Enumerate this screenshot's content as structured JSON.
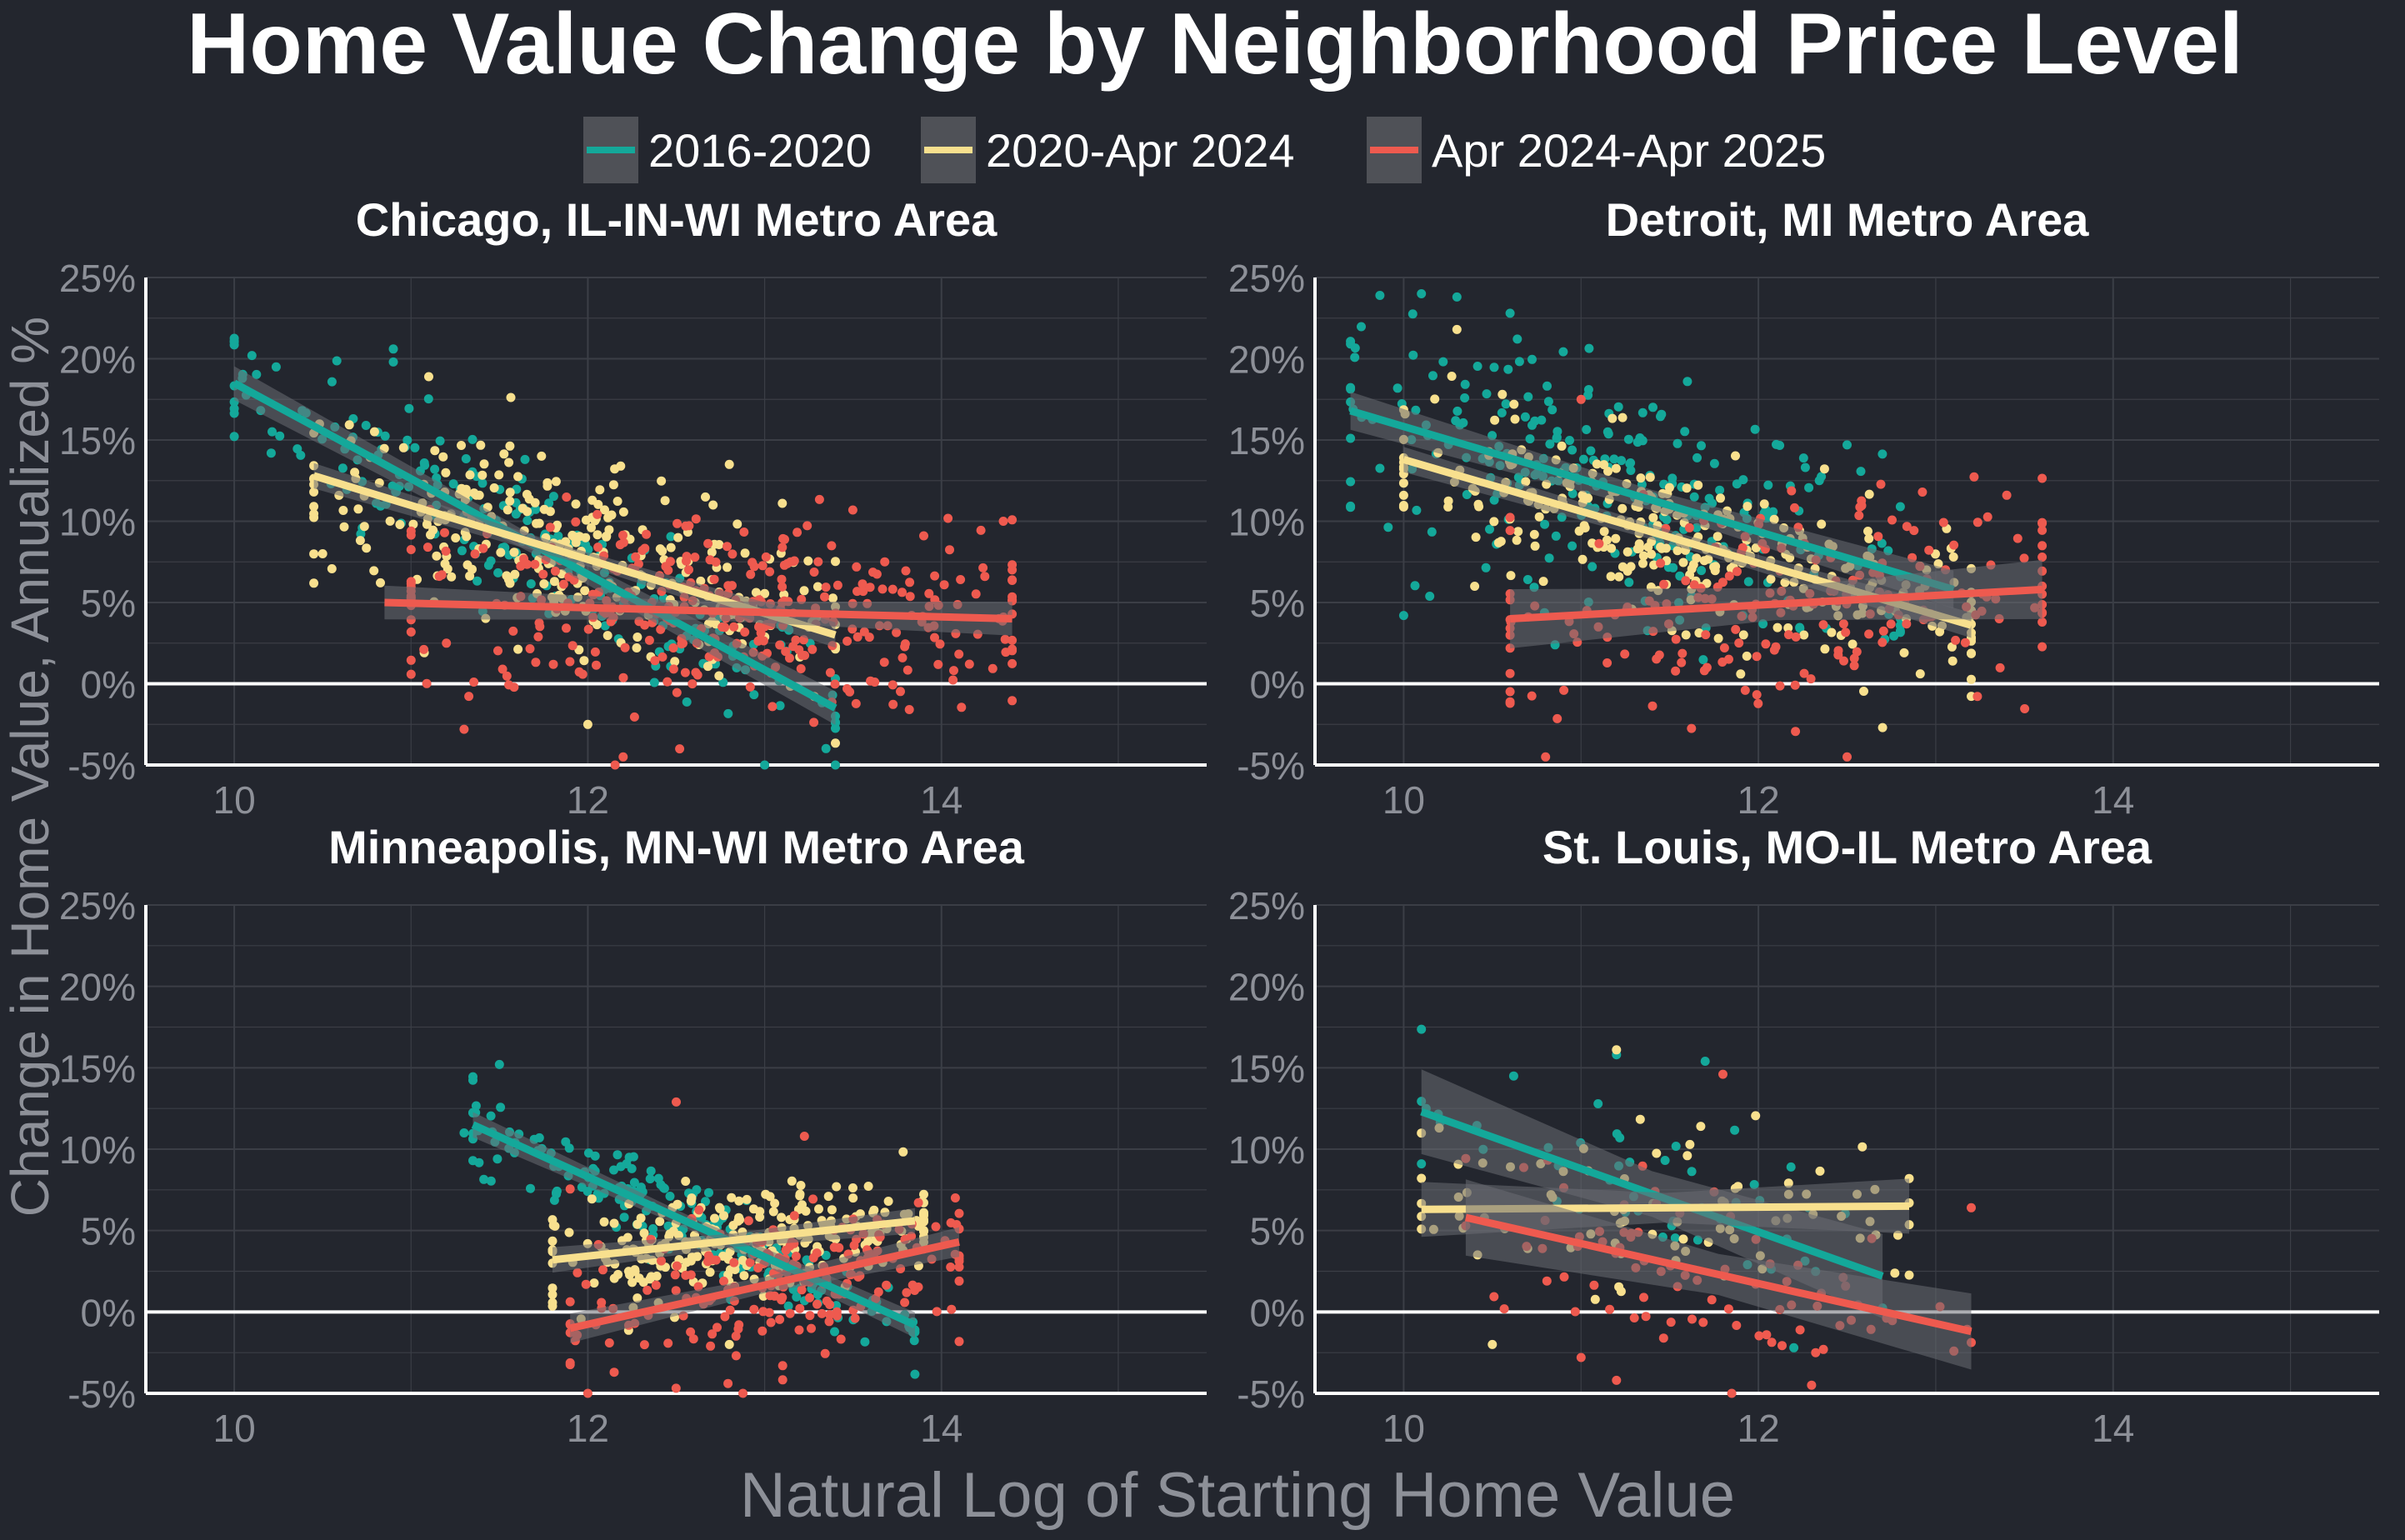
{
  "chart_data": {
    "type": "scatter",
    "title": "Home Value Change by Neighborhood Price Level",
    "xlabel": "Natural Log of Starting Home Value",
    "ylabel": "Change in Home Value, Annualized %",
    "xlim": [
      9.5,
      15.5
    ],
    "ylim": [
      -5,
      25
    ],
    "x_ticks": [
      10,
      12,
      14
    ],
    "y_ticks": [
      -5,
      0,
      5,
      10,
      15,
      20,
      25
    ],
    "y_tick_labels": [
      "-5%",
      "0%",
      "5%",
      "10%",
      "15%",
      "20%",
      "25%"
    ],
    "grid": true,
    "legend_position": "top",
    "series": [
      {
        "name": "2016-2020",
        "color": "#14a89a"
      },
      {
        "name": "2020-Apr 2024",
        "color": "#f8e08e"
      },
      {
        "name": "Apr 2024-Apr 2025",
        "color": "#ee5a4f"
      }
    ],
    "panels": [
      {
        "title": "Chicago, IL-IN-WI Metro Area",
        "fits": [
          {
            "x": [
              10.0,
              13.4
            ],
            "y": [
              18.5,
              -1.5
            ],
            "band": 0.8
          },
          {
            "x": [
              10.45,
              13.4
            ],
            "y": [
              12.8,
              3.0
            ],
            "band": 0.6
          },
          {
            "x": [
              10.85,
              14.4
            ],
            "y": [
              5.0,
              4.0
            ],
            "band": 0.8
          }
        ],
        "clouds": [
          {
            "x": [
              10.0,
              13.4
            ],
            "fit": [
              18.5,
              -1.5
            ],
            "sd": 2.2,
            "n": 220,
            "anchors": [
              [
                10.1,
                20.2
              ],
              [
                10.9,
                20.6
              ],
              [
                10.9,
                19.8
              ],
              [
                11.3,
                10.3
              ],
              [
                13.0,
                -5.0
              ]
            ]
          },
          {
            "x": [
              10.45,
              13.4
            ],
            "fit": [
              12.8,
              3.0
            ],
            "sd": 2.6,
            "n": 300,
            "anchors": [
              [
                10.5,
                8.0
              ],
              [
                11.1,
                18.9
              ],
              [
                12.8,
                13.5
              ],
              [
                13.1,
                11.1
              ],
              [
                12.0,
                -2.5
              ]
            ]
          },
          {
            "x": [
              11.0,
              14.4
            ],
            "fit": [
              5.0,
              4.0
            ],
            "sd": 3.0,
            "n": 360,
            "anchors": [
              [
                11.2,
                2.5
              ],
              [
                11.3,
                -2.8
              ],
              [
                14.35,
                10.0
              ],
              [
                12.2,
                -4.5
              ],
              [
                13.9,
                9.1
              ]
            ]
          }
        ]
      },
      {
        "title": "Detroit, MI Metro Area",
        "fits": [
          {
            "x": [
              9.7,
              13.1
            ],
            "y": [
              16.8,
              5.8
            ],
            "band": 0.9
          },
          {
            "x": [
              10.0,
              13.2
            ],
            "y": [
              13.8,
              3.6
            ],
            "band": 0.6
          },
          {
            "x": [
              10.6,
              13.6
            ],
            "y": [
              4.0,
              5.8
            ],
            "band": 1.4
          }
        ],
        "clouds": [
          {
            "x": [
              9.7,
              12.8
            ],
            "fit": [
              16.8,
              6.8
            ],
            "sd": 3.4,
            "n": 260,
            "anchors": [
              [
                10.1,
                24.0
              ],
              [
                10.3,
                23.8
              ],
              [
                10.6,
                22.8
              ],
              [
                10.0,
                4.2
              ],
              [
                12.5,
                14.7
              ],
              [
                11.6,
                18.6
              ]
            ]
          },
          {
            "x": [
              10.0,
              13.2
            ],
            "fit": [
              13.8,
              3.6
            ],
            "sd": 2.4,
            "n": 300,
            "anchors": [
              [
                10.3,
                21.8
              ],
              [
                10.4,
                6.0
              ],
              [
                11.9,
                0.6
              ],
              [
                13.1,
                7.8
              ],
              [
                12.7,
                -2.7
              ]
            ]
          },
          {
            "x": [
              10.6,
              13.6
            ],
            "fit": [
              4.0,
              5.8
            ],
            "sd": 3.4,
            "n": 200,
            "anchors": [
              [
                10.8,
                -4.5
              ],
              [
                12.5,
                -4.5
              ],
              [
                13.4,
                11.6
              ],
              [
                13.6,
                8.5
              ],
              [
                11.0,
                17.5
              ]
            ]
          }
        ]
      },
      {
        "title": "Minneapolis, MN-WI Metro Area",
        "fits": [
          {
            "x": [
              11.35,
              13.85
            ],
            "y": [
              11.5,
              -0.8
            ],
            "band": 0.6
          },
          {
            "x": [
              11.8,
              13.85
            ],
            "y": [
              3.2,
              5.6
            ],
            "band": 0.6
          },
          {
            "x": [
              11.9,
              14.1
            ],
            "y": [
              -1.0,
              4.3
            ],
            "band": 0.7
          }
        ],
        "clouds": [
          {
            "x": [
              11.35,
              13.85
            ],
            "fit": [
              11.5,
              -0.8
            ],
            "sd": 1.4,
            "n": 200,
            "anchors": [
              [
                11.5,
                15.2
              ],
              [
                11.3,
                11.0
              ],
              [
                13.7,
                1.5
              ]
            ]
          },
          {
            "x": [
              11.8,
              13.9
            ],
            "fit": [
              3.2,
              5.6
            ],
            "sd": 1.6,
            "n": 260,
            "anchors": [
              [
                13.5,
                7.0
              ],
              [
                13.7,
                6.8
              ],
              [
                12.8,
                -2.0
              ]
            ]
          },
          {
            "x": [
              11.9,
              14.1
            ],
            "fit": [
              -1.0,
              4.3
            ],
            "sd": 2.4,
            "n": 200,
            "anchors": [
              [
                12.5,
                12.9
              ],
              [
                14.1,
                5.1
              ],
              [
                12.0,
                -5.0
              ]
            ]
          }
        ]
      },
      {
        "title": "St. Louis, MO-IL Metro Area",
        "fits": [
          {
            "x": [
              10.1,
              12.7
            ],
            "y": [
              12.3,
              2.2
            ],
            "band": 2.0
          },
          {
            "x": [
              10.1,
              12.85
            ],
            "y": [
              6.3,
              6.5
            ],
            "band": 1.3
          },
          {
            "x": [
              10.35,
              13.2
            ],
            "y": [
              5.8,
              -1.2
            ],
            "band": 1.8
          }
        ],
        "clouds": [
          {
            "x": [
              10.1,
              12.7
            ],
            "fit": [
              12.3,
              2.2
            ],
            "sd": 2.4,
            "n": 45,
            "anchors": [
              [
                11.2,
                15.8
              ],
              [
                11.7,
                15.4
              ],
              [
                12.2,
                -2.2
              ],
              [
                10.1,
                9.1
              ]
            ]
          },
          {
            "x": [
              10.1,
              12.85
            ],
            "fit": [
              6.3,
              6.5
            ],
            "sd": 2.5,
            "n": 80,
            "anchors": [
              [
                11.2,
                16.1
              ],
              [
                10.2,
                11.3
              ],
              [
                10.5,
                -2.0
              ],
              [
                12.85,
                8.2
              ]
            ]
          },
          {
            "x": [
              10.35,
              13.2
            ],
            "fit": [
              5.8,
              -1.2
            ],
            "sd": 2.6,
            "n": 80,
            "anchors": [
              [
                11.8,
                14.6
              ],
              [
                11.0,
                -2.8
              ],
              [
                13.2,
                6.4
              ],
              [
                11.2,
                -4.2
              ],
              [
                12.3,
                -4.5
              ]
            ]
          }
        ]
      }
    ]
  }
}
